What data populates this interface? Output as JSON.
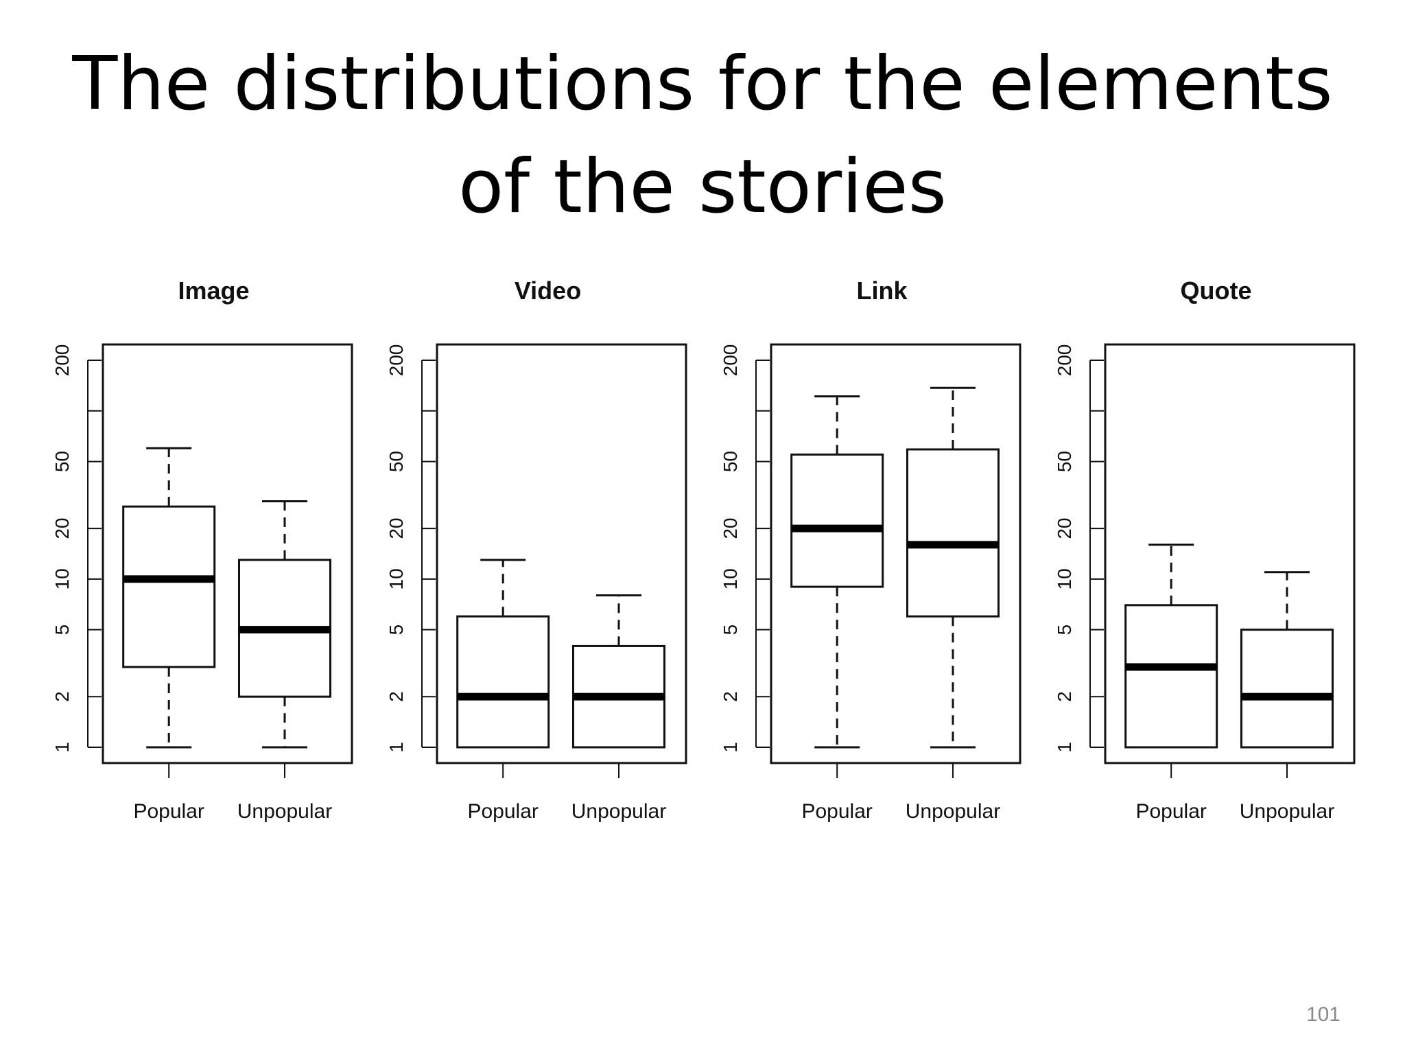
{
  "slide": {
    "title_lines": [
      "The distributions for the elements",
      "of the stories"
    ],
    "page_number": "101"
  },
  "chart_data": [
    {
      "type": "boxplot",
      "title": "Image",
      "categories": [
        "Popular",
        "Unpopular"
      ],
      "y_scale": "log",
      "ylim": [
        1,
        200
      ],
      "y_ticks": [
        1,
        2,
        5,
        10,
        20,
        50,
        100,
        200
      ],
      "y_tick_labels": [
        "1",
        "2",
        "5",
        "10",
        "20",
        "50",
        "",
        "200"
      ],
      "boxes": [
        {
          "category": "Popular",
          "whisker_low": 1,
          "q1": 3,
          "median": 10,
          "q3": 27,
          "whisker_high": 60
        },
        {
          "category": "Unpopular",
          "whisker_low": 1,
          "q1": 2,
          "median": 5,
          "q3": 13,
          "whisker_high": 29
        }
      ]
    },
    {
      "type": "boxplot",
      "title": "Video",
      "categories": [
        "Popular",
        "Unpopular"
      ],
      "y_scale": "log",
      "ylim": [
        1,
        200
      ],
      "y_ticks": [
        1,
        2,
        5,
        10,
        20,
        50,
        100,
        200
      ],
      "y_tick_labels": [
        "1",
        "2",
        "5",
        "10",
        "20",
        "50",
        "",
        "200"
      ],
      "boxes": [
        {
          "category": "Popular",
          "whisker_low": 1,
          "q1": 1,
          "median": 2,
          "q3": 6,
          "whisker_high": 13
        },
        {
          "category": "Unpopular",
          "whisker_low": 1,
          "q1": 1,
          "median": 2,
          "q3": 4,
          "whisker_high": 8
        }
      ]
    },
    {
      "type": "boxplot",
      "title": "Link",
      "categories": [
        "Popular",
        "Unpopular"
      ],
      "y_scale": "log",
      "ylim": [
        1,
        200
      ],
      "y_ticks": [
        1,
        2,
        5,
        10,
        20,
        50,
        100,
        200
      ],
      "y_tick_labels": [
        "1",
        "2",
        "5",
        "10",
        "20",
        "50",
        "",
        "200"
      ],
      "boxes": [
        {
          "category": "Popular",
          "whisker_low": 1,
          "q1": 9,
          "median": 20,
          "q3": 55,
          "whisker_high": 122
        },
        {
          "category": "Unpopular",
          "whisker_low": 1,
          "q1": 6,
          "median": 16,
          "q3": 59,
          "whisker_high": 137
        }
      ]
    },
    {
      "type": "boxplot",
      "title": "Quote",
      "categories": [
        "Popular",
        "Unpopular"
      ],
      "y_scale": "log",
      "ylim": [
        1,
        200
      ],
      "y_ticks": [
        1,
        2,
        5,
        10,
        20,
        50,
        100,
        200
      ],
      "y_tick_labels": [
        "1",
        "2",
        "5",
        "10",
        "20",
        "50",
        "",
        "200"
      ],
      "boxes": [
        {
          "category": "Popular",
          "whisker_low": 1,
          "q1": 1,
          "median": 3,
          "q3": 7,
          "whisker_high": 16
        },
        {
          "category": "Unpopular",
          "whisker_low": 1,
          "q1": 1,
          "median": 2,
          "q3": 5,
          "whisker_high": 11
        }
      ]
    }
  ]
}
